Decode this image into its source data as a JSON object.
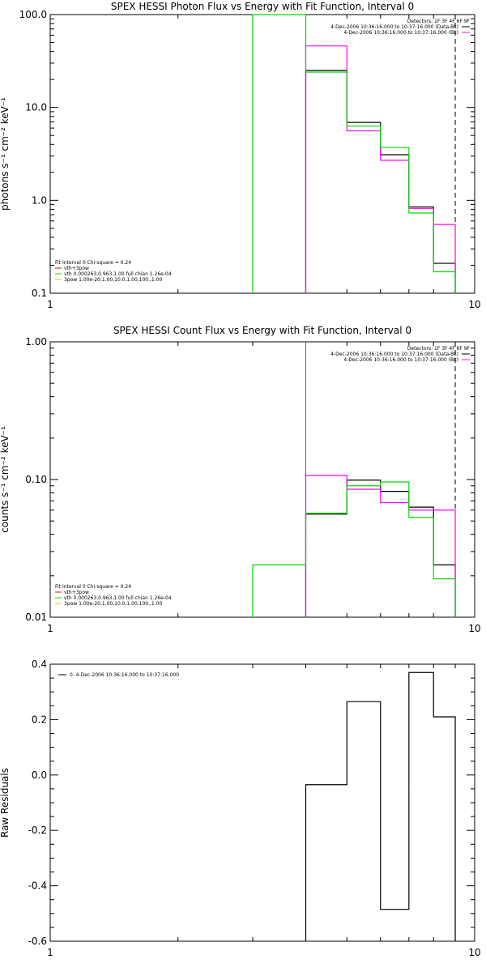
{
  "chart_data": [
    {
      "type": "line",
      "title": "SPEX HESSI Photon Flux vs Energy with Fit Function, Interval 0",
      "xlabel": "",
      "ylabel": "photons s⁻¹ cm⁻² keV⁻¹",
      "xscale": "log",
      "yscale": "log",
      "xlim": [
        1,
        10
      ],
      "ylim": [
        0.1,
        100
      ],
      "x_tick_labels": [
        "1",
        "10"
      ],
      "y_tick_labels": [
        "0.1",
        "1.0",
        "10.0",
        "100.0"
      ],
      "bin_edges": [
        3,
        4,
        5,
        6,
        7,
        8,
        9
      ],
      "series": [
        {
          "color": "#000000",
          "values": [
            null,
            25,
            6.9,
            3.1,
            0.85,
            0.21
          ]
        },
        {
          "color": "#ff00ff",
          "values": [
            null,
            46,
            5.6,
            2.7,
            0.82,
            0.55
          ]
        },
        {
          "color": "#00dd00",
          "values": [
            100,
            24,
            6.3,
            3.7,
            0.73,
            0.17
          ]
        }
      ],
      "vlines": [
        {
          "x": 4,
          "style": "dotted",
          "color": "#000000"
        },
        {
          "x": 4,
          "style": "solid",
          "color": "#ff00ff"
        },
        {
          "x": 9,
          "style": "dashed",
          "color": "#000000"
        }
      ],
      "legend_top_right": [
        {
          "text": "Detectors: 1F 3F 4F 6F 9F",
          "color": null
        },
        {
          "text": "4-Dec-2006 10:36:16.000 to 10:37:16.000 (Data-Bk)",
          "color": "#000000"
        },
        {
          "text": "4-Dec-2006 10:36:16.000 to 10:37:16.000 (Bk)",
          "color": "#ff00ff"
        }
      ],
      "legend_bottom_left": [
        {
          "text": "Fit Interval 0   Chi-square = 0.24",
          "color": null
        },
        {
          "text": "vth+3pow",
          "color": "#ff0000"
        },
        {
          "text": "vth 0.000263,0.963,1.00  full chian 1.26e-04",
          "color": "#00dd00"
        },
        {
          "text": "3pow 1.00e-20,1.00,10.0,1.00,100.,1.00",
          "color": "#ddcc00"
        }
      ]
    },
    {
      "type": "line",
      "title": "SPEX HESSI Count Flux vs Energy with Fit Function, Interval 0",
      "xlabel": "",
      "ylabel": "counts s⁻¹ cm⁻² keV⁻¹",
      "xscale": "log",
      "yscale": "log",
      "xlim": [
        1,
        10
      ],
      "ylim": [
        0.01,
        1
      ],
      "x_tick_labels": [
        "1",
        "10"
      ],
      "y_tick_labels": [
        "0.01",
        "0.10",
        "1.00"
      ],
      "bin_edges": [
        3,
        4,
        5,
        6,
        7,
        8,
        9
      ],
      "series": [
        {
          "color": "#000000",
          "values": [
            null,
            0.056,
            0.099,
            0.082,
            0.063,
            0.024
          ]
        },
        {
          "color": "#ff00ff",
          "values": [
            null,
            0.107,
            0.085,
            0.068,
            0.06,
            0.06
          ]
        },
        {
          "color": "#00dd00",
          "values": [
            0.024,
            0.057,
            0.09,
            0.096,
            0.053,
            0.019
          ]
        }
      ],
      "vlines": [
        {
          "x": 4,
          "style": "dotted",
          "color": "#000000"
        },
        {
          "x": 4,
          "style": "solid",
          "color": "#ff00ff"
        },
        {
          "x": 9,
          "style": "dashed",
          "color": "#000000"
        }
      ],
      "legend_top_right": [
        {
          "text": "Detectors: 1F 3F 4F 6F 9F",
          "color": null
        },
        {
          "text": "4-Dec-2006 10:36:16.000 to 10:37:16.000 (Data-Bk)",
          "color": "#000000"
        },
        {
          "text": "4-Dec-2006 10:36:16.000 to 10:37:16.000 (Bk)",
          "color": "#ff00ff"
        }
      ],
      "legend_bottom_left": [
        {
          "text": "Fit Interval 0   Chi-square = 0.24",
          "color": null
        },
        {
          "text": "vth+3pow",
          "color": "#ff0000"
        },
        {
          "text": "vth 0.000263,0.963,1.00  full chian 1.26e-04",
          "color": "#00dd00"
        },
        {
          "text": "3pow 1.00e-20,1.00,10.0,1.00,100.,1.00",
          "color": "#ddcc00"
        }
      ]
    },
    {
      "type": "line",
      "title": "",
      "xlabel": "",
      "ylabel": "Raw Residuals",
      "xscale": "log",
      "yscale": "linear",
      "xlim": [
        1,
        10
      ],
      "ylim": [
        -0.6,
        0.4
      ],
      "x_tick_labels": [
        "1",
        "10"
      ],
      "y_tick_labels": [
        "-0.6",
        "-0.4",
        "-0.2",
        "0.0",
        "0.2",
        "0.4"
      ],
      "bin_edges": [
        4,
        5,
        6,
        7,
        8,
        9
      ],
      "series": [
        {
          "color": "#000000",
          "values": [
            -0.035,
            0.265,
            -0.485,
            0.37,
            0.21
          ]
        }
      ],
      "vlines": [],
      "legend_top_left": [
        {
          "text": "0.  4-Dec-2006 10:36:16.000 to 10:37:16.000",
          "color": "#000000"
        }
      ]
    }
  ]
}
